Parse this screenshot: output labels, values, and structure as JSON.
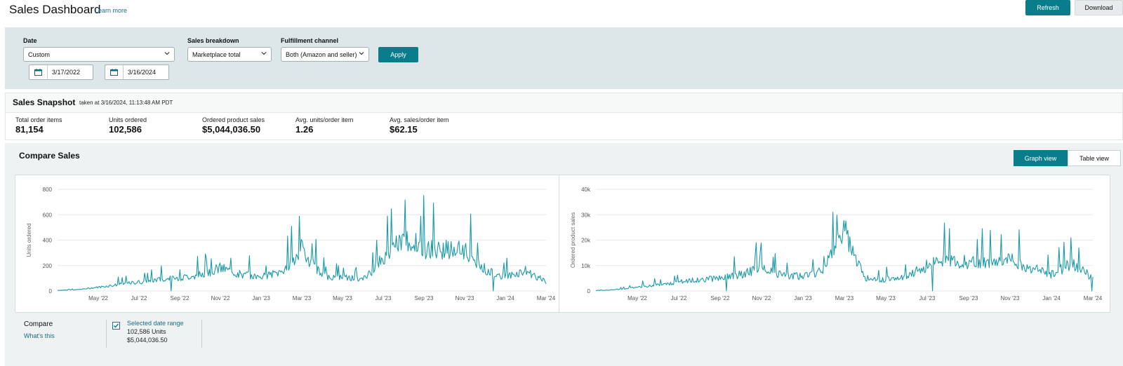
{
  "header": {
    "title": "Sales Dashboard",
    "learn_more": "Learn more",
    "refresh_label": "Refresh",
    "download_label": "Download"
  },
  "filters": {
    "date": {
      "label": "Date",
      "value": "Custom",
      "start": "3/17/2022",
      "end": "3/16/2024"
    },
    "breakdown": {
      "label": "Sales breakdown",
      "value": "Marketplace total"
    },
    "fulfillment": {
      "label": "Fulfillment channel",
      "value": "Both (Amazon and seller)"
    },
    "apply_label": "Apply"
  },
  "snapshot": {
    "title": "Sales Snapshot",
    "taken": "taken at 3/16/2024, 11:13:48 AM PDT",
    "metrics": [
      {
        "label": "Total order items",
        "value": "81,154"
      },
      {
        "label": "Units ordered",
        "value": "102,586"
      },
      {
        "label": "Ordered product sales",
        "value": "$5,044,036.50"
      },
      {
        "label": "Avg. units/order item",
        "value": "1.26"
      },
      {
        "label": "Avg. sales/order item",
        "value": "$62.15"
      }
    ]
  },
  "compare": {
    "title": "Compare Sales",
    "graph_view_label": "Graph view",
    "table_view_label": "Table view",
    "compare_label": "Compare",
    "whats_this": "What's this",
    "selected_range_label": "Selected date range",
    "selected_units": "102,586 Units",
    "selected_sales": "$5,044,036.50"
  },
  "colors": {
    "accent": "#0a7d8c",
    "line": "#1a9aa8",
    "panel": "#dde7ea"
  },
  "chart_data": [
    {
      "type": "line",
      "ylabel": "Units ordered",
      "ylim": [
        0,
        800
      ],
      "yticks": [
        "0",
        "200",
        "400",
        "600",
        "800"
      ],
      "xticks": [
        "May '22",
        "Jul '22",
        "Sep '22",
        "Nov '22",
        "Jan '23",
        "Mar '23",
        "May '23",
        "Jul '23",
        "Sep '23",
        "Nov '23",
        "Jan '24",
        "Mar '24"
      ],
      "grid": true,
      "series": [
        {
          "x": [
            "2022-03",
            "2022-04",
            "2022-05",
            "2022-06",
            "2022-07",
            "2022-08",
            "2022-09",
            "2022-10",
            "2022-11",
            "2022-12",
            "2023-01",
            "2023-02",
            "2023-03",
            "2023-04",
            "2023-05",
            "2023-06",
            "2023-07",
            "2023-08",
            "2023-09",
            "2023-10",
            "2023-11",
            "2023-12",
            "2024-01",
            "2024-02",
            "2024-03"
          ],
          "values": [
            5,
            10,
            30,
            50,
            70,
            90,
            100,
            130,
            180,
            130,
            110,
            150,
            330,
            120,
            110,
            90,
            250,
            420,
            330,
            330,
            310,
            170,
            110,
            160,
            70
          ]
        }
      ]
    },
    {
      "type": "line",
      "ylabel": "Ordered product sales",
      "ylim": [
        0,
        40000
      ],
      "yticks": [
        "0",
        "10k",
        "20k",
        "30k",
        "40k"
      ],
      "xticks": [
        "May '22",
        "Jul '22",
        "Sep '22",
        "Nov '22",
        "Jan '23",
        "Mar '23",
        "May '23",
        "Jul '23",
        "Sep '23",
        "Nov '23",
        "Jan '24",
        "Mar '24"
      ],
      "grid": true,
      "series": [
        {
          "x": [
            "2022-03",
            "2022-04",
            "2022-05",
            "2022-06",
            "2022-07",
            "2022-08",
            "2022-09",
            "2022-10",
            "2022-11",
            "2022-12",
            "2023-01",
            "2023-02",
            "2023-03",
            "2023-04",
            "2023-05",
            "2023-06",
            "2023-07",
            "2023-08",
            "2023-09",
            "2023-10",
            "2023-11",
            "2023-12",
            "2024-01",
            "2024-02",
            "2024-03"
          ],
          "values": [
            200,
            500,
            1500,
            2500,
            3500,
            4500,
            5000,
            6500,
            9000,
            6500,
            5500,
            8000,
            24000,
            5000,
            4500,
            5500,
            10000,
            13000,
            11000,
            12000,
            13000,
            9000,
            6500,
            11000,
            5000
          ]
        }
      ]
    }
  ]
}
